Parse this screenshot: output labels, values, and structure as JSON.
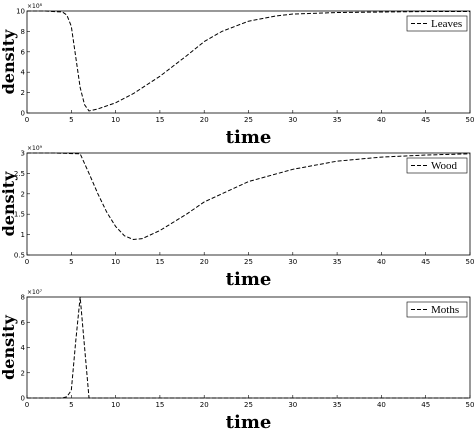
{
  "chart_data": [
    {
      "type": "line",
      "xlabel": "time",
      "ylabel": "density",
      "multiplier": "×10⁸",
      "x": [
        0,
        2,
        4,
        4.5,
        5,
        5.5,
        6,
        6.5,
        7,
        8,
        10,
        12,
        15,
        18,
        20,
        22,
        25,
        28,
        30,
        35,
        40,
        45,
        50
      ],
      "series": [
        {
          "name": "Leaves",
          "color": "#000000",
          "dash": true,
          "values": [
            10,
            10,
            9.9,
            9.6,
            8.5,
            5.5,
            2.5,
            0.8,
            0.2,
            0.4,
            1.0,
            1.9,
            3.6,
            5.6,
            7.0,
            8.0,
            9.0,
            9.5,
            9.7,
            9.85,
            9.9,
            9.95,
            9.95
          ]
        }
      ],
      "xlim": [
        0,
        50
      ],
      "xticks": [
        0,
        5,
        10,
        15,
        20,
        25,
        30,
        35,
        40,
        45,
        50
      ],
      "ylim": [
        0,
        10
      ],
      "yticks": [
        0,
        2,
        4,
        6,
        8,
        10
      ],
      "legend": "upper right"
    },
    {
      "type": "line",
      "xlabel": "time",
      "ylabel": "density",
      "multiplier": "×10⁹",
      "x": [
        0,
        3,
        6,
        7,
        8,
        9,
        10,
        11,
        12,
        13,
        15,
        18,
        20,
        25,
        30,
        35,
        40,
        45,
        50
      ],
      "series": [
        {
          "name": "Wood",
          "color": "#000000",
          "dash": true,
          "values": [
            3,
            3,
            2.98,
            2.5,
            2.0,
            1.55,
            1.2,
            0.97,
            0.88,
            0.9,
            1.1,
            1.5,
            1.8,
            2.3,
            2.6,
            2.8,
            2.9,
            2.95,
            2.98
          ]
        }
      ],
      "xlim": [
        0,
        50
      ],
      "xticks": [
        0,
        5,
        10,
        15,
        20,
        25,
        30,
        35,
        40,
        45,
        50
      ],
      "ylim": [
        0.5,
        3
      ],
      "yticks": [
        0.5,
        1,
        1.5,
        2,
        2.5,
        3
      ],
      "legend": "upper right"
    },
    {
      "type": "line",
      "xlabel": "time",
      "ylabel": "density",
      "multiplier": "×10⁷",
      "x": [
        0,
        4,
        4.5,
        5,
        5.5,
        6,
        6.5,
        7,
        10,
        20,
        30,
        40,
        50
      ],
      "series": [
        {
          "name": "Moths",
          "color": "#000000",
          "dash": true,
          "values": [
            0,
            0,
            0.1,
            0.6,
            4.5,
            8,
            4,
            0,
            0,
            0,
            0,
            0,
            0
          ]
        }
      ],
      "xlim": [
        0,
        50
      ],
      "xticks": [
        0,
        5,
        10,
        15,
        20,
        25,
        30,
        35,
        40,
        45,
        50
      ],
      "ylim": [
        0,
        8
      ],
      "yticks": [
        0,
        2,
        4,
        6,
        8
      ],
      "legend": "upper right"
    }
  ]
}
